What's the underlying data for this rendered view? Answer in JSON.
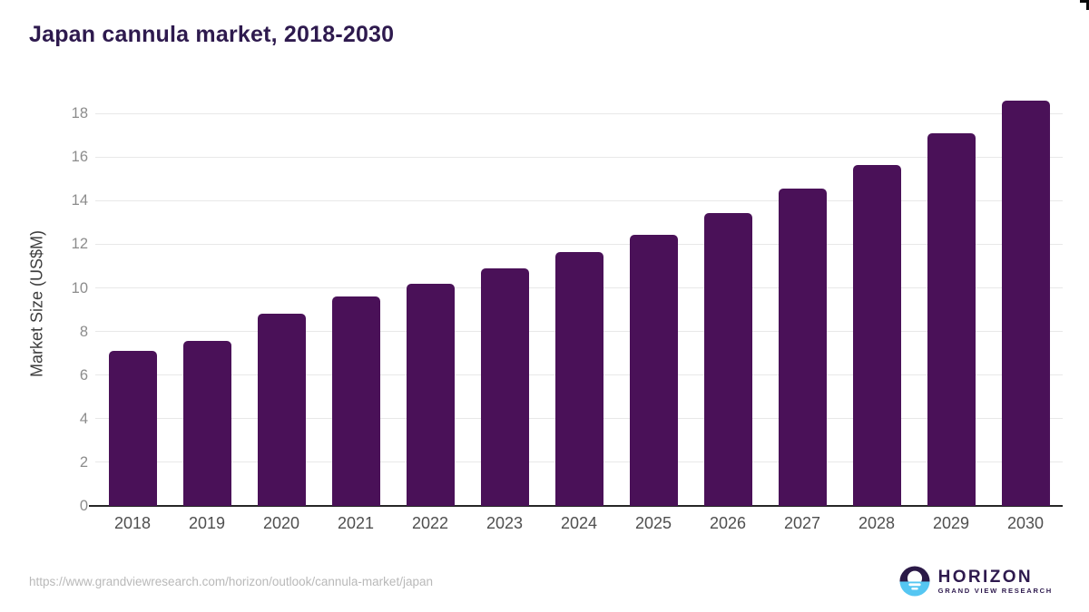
{
  "header": {
    "title": "Japan cannula market, 2018-2030"
  },
  "chart_data": {
    "type": "bar",
    "title": "Japan cannula market, 2018-2030",
    "categories": [
      "2018",
      "2019",
      "2020",
      "2021",
      "2022",
      "2023",
      "2024",
      "2025",
      "2026",
      "2027",
      "2028",
      "2029",
      "2030"
    ],
    "values": [
      7.1,
      7.55,
      8.8,
      9.6,
      10.2,
      10.9,
      11.65,
      12.45,
      13.45,
      14.55,
      15.65,
      17.1,
      18.6
    ],
    "xlabel": "",
    "ylabel": "Market Size (US$M)",
    "ylim": [
      0,
      19
    ],
    "yticks": [
      0,
      2,
      4,
      6,
      8,
      10,
      12,
      14,
      16,
      18
    ],
    "grid": true,
    "legend": "none",
    "bar_color": "#4a1158"
  },
  "colors": {
    "bar": "#4a1158",
    "title": "#2e1a4e",
    "grid": "#e8e8e8",
    "axis": "#262626",
    "y_tick": "#8c8c8c",
    "x_tick": "#4f4f4f",
    "axis_title": "#3d3d3d",
    "url": "#b9b9b9",
    "logo_dark": "#2b1947",
    "logo_blue": "#55c6f2"
  },
  "footer": {
    "source_url": "https://www.grandviewresearch.com/horizon/outlook/cannula-market/japan",
    "logo": {
      "name": "HORIZON",
      "subtitle": "GRAND VIEW RESEARCH"
    }
  }
}
